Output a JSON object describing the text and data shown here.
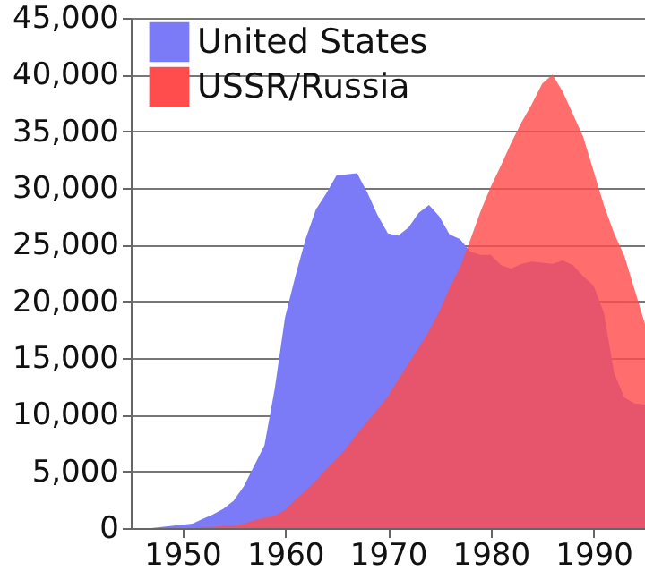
{
  "chart_data": {
    "type": "area",
    "xlim": [
      1945,
      1995
    ],
    "xticks": [
      1950,
      1960,
      1970,
      1980,
      1990
    ],
    "ylim": [
      0,
      45000
    ],
    "yticks": [
      {
        "value": 0,
        "label": "0"
      },
      {
        "value": 5000,
        "label": "5,000"
      },
      {
        "value": 10000,
        "label": "10,000"
      },
      {
        "value": 15000,
        "label": "15,000"
      },
      {
        "value": 20000,
        "label": "20,000"
      },
      {
        "value": 25000,
        "label": "25,000"
      },
      {
        "value": 30000,
        "label": "30,000"
      },
      {
        "value": 35000,
        "label": "35,000"
      },
      {
        "value": 40000,
        "label": "40,000"
      },
      {
        "value": 45000,
        "label": "45,000"
      }
    ],
    "grid": "y",
    "legend": "top left",
    "series": [
      {
        "name": "United States",
        "color": "#7b7bf7",
        "x": [
          1945,
          1946,
          1947,
          1948,
          1949,
          1950,
          1951,
          1952,
          1953,
          1954,
          1955,
          1956,
          1957,
          1958,
          1959,
          1960,
          1961,
          1962,
          1963,
          1964,
          1965,
          1966,
          1967,
          1968,
          1969,
          1970,
          1971,
          1972,
          1973,
          1974,
          1975,
          1976,
          1977,
          1978,
          1979,
          1980,
          1981,
          1982,
          1983,
          1984,
          1985,
          1986,
          1987,
          1988,
          1989,
          1990,
          1991,
          1992,
          1993,
          1994,
          1995
        ],
        "values": [
          0,
          0,
          0,
          100,
          200,
          300,
          400,
          800,
          1200,
          1700,
          2400,
          3700,
          5500,
          7300,
          12300,
          18600,
          22200,
          25500,
          28100,
          29500,
          31100,
          31200,
          31300,
          29600,
          27600,
          26000,
          25800,
          26500,
          27800,
          28500,
          27500,
          25900,
          25500,
          24400,
          24100,
          24100,
          23200,
          22900,
          23300,
          23500,
          23400,
          23300,
          23600,
          23200,
          22200,
          21400,
          19000,
          13700,
          11500,
          11000,
          10900
        ]
      },
      {
        "name": "USSR/Russia",
        "color": "#ff4d4d",
        "x": [
          1949,
          1950,
          1951,
          1952,
          1953,
          1954,
          1955,
          1956,
          1957,
          1958,
          1959,
          1960,
          1961,
          1962,
          1963,
          1964,
          1965,
          1966,
          1967,
          1968,
          1969,
          1970,
          1971,
          1972,
          1973,
          1974,
          1975,
          1976,
          1977,
          1978,
          1979,
          1980,
          1981,
          1982,
          1983,
          1984,
          1985,
          1986,
          1987,
          1988,
          1989,
          1990,
          1991,
          1992,
          1993,
          1994,
          1995
        ],
        "values": [
          0,
          0,
          0,
          100,
          100,
          200,
          200,
          400,
          700,
          900,
          1100,
          1600,
          2500,
          3300,
          4200,
          5200,
          6100,
          7100,
          8300,
          9400,
          10500,
          11600,
          13100,
          14500,
          15900,
          17400,
          19100,
          21200,
          23000,
          25400,
          27900,
          30100,
          32000,
          34000,
          35800,
          37400,
          39200,
          40000,
          38500,
          36500,
          34500,
          31500,
          28500,
          26000,
          24000,
          21000,
          18000
        ]
      }
    ]
  }
}
